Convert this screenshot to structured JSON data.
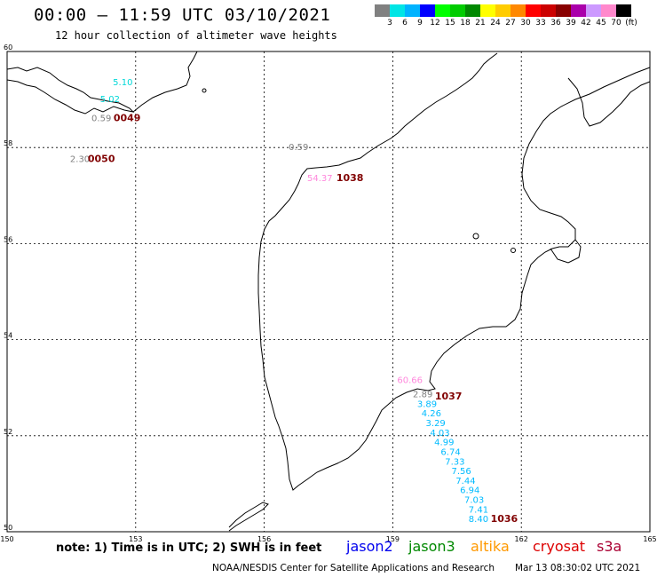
{
  "header": {
    "title": "00:00 – 11:59 UTC 03/10/2021",
    "subtitle": "12 hour collection of altimeter wave heights"
  },
  "scale": {
    "colors": [
      "#808080",
      "#00e5e5",
      "#00b3ff",
      "#0000ff",
      "#00ff00",
      "#00cc00",
      "#008800",
      "#ffff00",
      "#ffcc00",
      "#ff8800",
      "#ff0000",
      "#cc0000",
      "#880000",
      "#aa00aa",
      "#cc99ff",
      "#ff88cc",
      "#000000"
    ],
    "labels": [
      "3",
      "6",
      "9",
      "12",
      "15",
      "18",
      "21",
      "24",
      "27",
      "30",
      "33",
      "36",
      "39",
      "42",
      "45",
      "70",
      "(ft)"
    ]
  },
  "axes": {
    "lon_ticks": [
      "150",
      "153",
      "156",
      "159",
      "162",
      "165"
    ],
    "lat_ticks": [
      "60",
      "58",
      "56",
      "54",
      "52",
      "50"
    ]
  },
  "chart_data": {
    "type": "scatter",
    "xlabel": "",
    "ylabel": "",
    "xlim": [
      150,
      165
    ],
    "ylim": [
      50,
      60
    ],
    "grid": true,
    "points": [
      {
        "lon": 152.7,
        "lat": 59.3,
        "value": "5.10",
        "color": "#00d8d8"
      },
      {
        "lon": 152.4,
        "lat": 58.95,
        "value": "5.02",
        "color": "#00d8d8"
      },
      {
        "lon": 152.2,
        "lat": 58.55,
        "value": "0.59",
        "color": "#808080"
      },
      {
        "lon": 151.7,
        "lat": 57.7,
        "value": "2.30",
        "color": "#808080"
      },
      {
        "lon": 156.8,
        "lat": 57.95,
        "value": "0.59",
        "color": "#808080"
      },
      {
        "lon": 157.3,
        "lat": 57.3,
        "value": "54.37",
        "color": "#ff88dd"
      },
      {
        "lon": 159.4,
        "lat": 53.1,
        "value": "60.66",
        "color": "#ff88dd"
      },
      {
        "lon": 159.7,
        "lat": 52.8,
        "value": "2.89",
        "color": "#808080"
      },
      {
        "lon": 159.8,
        "lat": 52.6,
        "value": "3.89",
        "color": "#00bbff"
      },
      {
        "lon": 159.9,
        "lat": 52.4,
        "value": "4.26",
        "color": "#00bbff"
      },
      {
        "lon": 160.0,
        "lat": 52.2,
        "value": "3.29",
        "color": "#00bbff"
      },
      {
        "lon": 160.1,
        "lat": 52.0,
        "value": "4.03",
        "color": "#00bbff"
      },
      {
        "lon": 160.2,
        "lat": 51.8,
        "value": "4.99",
        "color": "#00bbff"
      },
      {
        "lon": 160.35,
        "lat": 51.6,
        "value": "6.74",
        "color": "#00bbff"
      },
      {
        "lon": 160.45,
        "lat": 51.4,
        "value": "7.33",
        "color": "#00bbff"
      },
      {
        "lon": 160.6,
        "lat": 51.2,
        "value": "7.56",
        "color": "#00bbff"
      },
      {
        "lon": 160.7,
        "lat": 51.0,
        "value": "7.44",
        "color": "#00bbff"
      },
      {
        "lon": 160.8,
        "lat": 50.8,
        "value": "6.94",
        "color": "#00bbff"
      },
      {
        "lon": 160.9,
        "lat": 50.6,
        "value": "7.03",
        "color": "#00bbff"
      },
      {
        "lon": 161.0,
        "lat": 50.4,
        "value": "7.41",
        "color": "#00bbff"
      },
      {
        "lon": 161.0,
        "lat": 50.2,
        "value": "8.40",
        "color": "#00bbff"
      }
    ],
    "pass_ids": [
      {
        "lon": 152.8,
        "lat": 58.55,
        "label": "0049"
      },
      {
        "lon": 152.2,
        "lat": 57.7,
        "label": "0050"
      },
      {
        "lon": 158.0,
        "lat": 57.3,
        "label": "1038"
      },
      {
        "lon": 160.3,
        "lat": 52.75,
        "label": "1037"
      },
      {
        "lon": 161.6,
        "lat": 50.2,
        "label": "1036"
      }
    ]
  },
  "footer": {
    "note": "note:  1) Time is in UTC;  2) SWH is in feet",
    "satellites": [
      {
        "name": "jason2",
        "color": "#0000ee"
      },
      {
        "name": "jason3",
        "color": "#008800"
      },
      {
        "name": "altika",
        "color": "#ff9900"
      },
      {
        "name": "cryosat",
        "color": "#dd0000"
      },
      {
        "name": "s3a",
        "color": "#aa0033"
      }
    ],
    "credit": "NOAA/NESDIS Center for Satellite Applications and Research",
    "timestamp": "Mar 13 08:30:02 UTC 2021"
  }
}
